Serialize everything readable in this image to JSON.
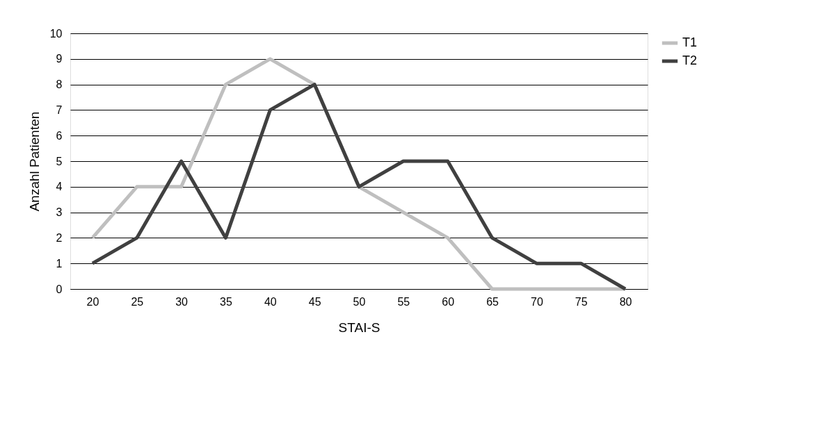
{
  "chart_data": {
    "type": "line",
    "xlabel": "STAI-S",
    "ylabel": "Anzahl Patienten",
    "categories": [
      "20",
      "25",
      "30",
      "35",
      "40",
      "45",
      "50",
      "55",
      "60",
      "65",
      "70",
      "75",
      "80"
    ],
    "series": [
      {
        "name": "T1",
        "color": "#bfbfbf",
        "values": [
          2,
          4,
          4,
          8,
          9,
          8,
          4,
          3,
          2,
          0,
          0,
          0,
          0
        ]
      },
      {
        "name": "T2",
        "color": "#404040",
        "values": [
          1,
          2,
          5,
          2,
          7,
          8,
          4,
          5,
          5,
          2,
          1,
          1,
          0
        ]
      }
    ],
    "ylim": [
      0,
      10
    ],
    "yticks": [
      0,
      1,
      2,
      3,
      4,
      5,
      6,
      7,
      8,
      9,
      10
    ],
    "grid": "y",
    "legend": "right",
    "marker": "none",
    "line_style": "solid"
  }
}
